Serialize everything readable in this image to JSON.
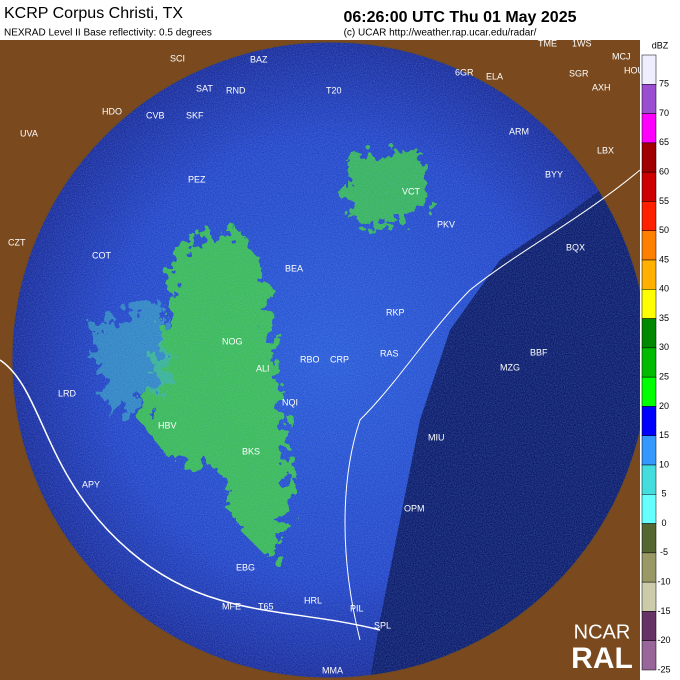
{
  "header": {
    "title": "KCRP Corpus Christi, TX",
    "subtitle": "NEXRAD Level II Base reflectivity: 0.5 degrees",
    "time": "06:26:00 UTC Thu 01 May 2025",
    "credit": "(c) UCAR http://weather.rap.ucar.edu/radar/"
  },
  "legend": {
    "unit": "dBZ",
    "items": [
      {
        "label": "75",
        "color": "#eeeeff"
      },
      {
        "label": "70",
        "color": "#9a4fd0"
      },
      {
        "label": "65",
        "color": "#ff00ff"
      },
      {
        "label": "60",
        "color": "#a00000"
      },
      {
        "label": "55",
        "color": "#cc0000"
      },
      {
        "label": "50",
        "color": "#ff2000"
      },
      {
        "label": "45",
        "color": "#ff8000"
      },
      {
        "label": "40",
        "color": "#ffb000"
      },
      {
        "label": "35",
        "color": "#ffff00"
      },
      {
        "label": "30",
        "color": "#008800"
      },
      {
        "label": "25",
        "color": "#00bb00"
      },
      {
        "label": "20",
        "color": "#00ff00"
      },
      {
        "label": "15",
        "color": "#0000ff"
      },
      {
        "label": "10",
        "color": "#3399ff"
      },
      {
        "label": "5",
        "color": "#44dddd"
      },
      {
        "label": "0",
        "color": "#66ffff"
      },
      {
        "label": "-5",
        "color": "#556633"
      },
      {
        "label": "-10",
        "color": "#999966"
      },
      {
        "label": "-15",
        "color": "#ccccaa"
      },
      {
        "label": "-20",
        "color": "#663366"
      },
      {
        "label": "-25",
        "color": "#996699"
      }
    ]
  },
  "stations": [
    "SCI",
    "BAZ",
    "SAT",
    "RND",
    "HDO",
    "CVB",
    "SKF",
    "UVA",
    "T20",
    "6GR",
    "ELA",
    "TME",
    "1WS",
    "MCJ",
    "SGR",
    "HOU",
    "AXH",
    "ARM",
    "LBX",
    "BYY",
    "PEZ",
    "VCT",
    "PKV",
    "CZT",
    "COT",
    "BEA",
    "BQX",
    "NOG",
    "ALI",
    "RBO",
    "CRP",
    "RKP",
    "RAS",
    "LRD",
    "HBV",
    "NQI",
    "BBF",
    "MZG",
    "MIU",
    "APY",
    "BKS",
    "OPM",
    "EBG",
    "MFE",
    "T65",
    "HRL",
    "PIL",
    "SPL",
    "MMA"
  ],
  "logo": {
    "top": "NCAR",
    "bottom": "RAL"
  }
}
